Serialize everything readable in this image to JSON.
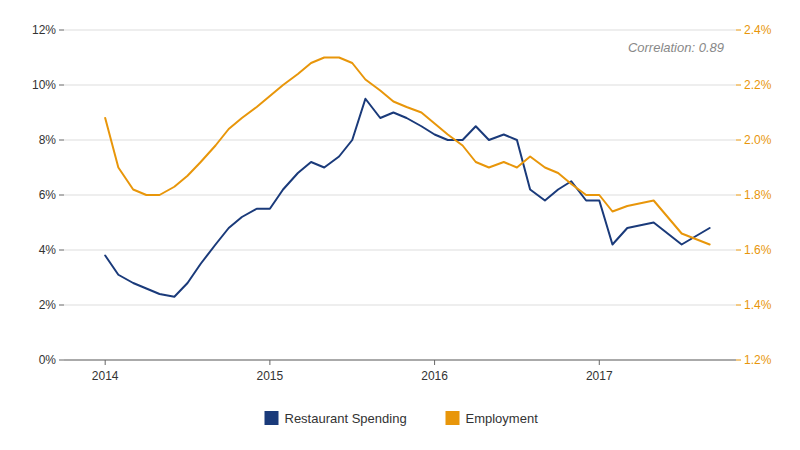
{
  "chart_data": {
    "type": "line",
    "annotation": "Correlation: 0.89",
    "x": [
      2014.0,
      2014.08,
      2014.17,
      2014.25,
      2014.33,
      2014.42,
      2014.5,
      2014.58,
      2014.67,
      2014.75,
      2014.83,
      2014.92,
      2015.0,
      2015.08,
      2015.17,
      2015.25,
      2015.33,
      2015.42,
      2015.5,
      2015.58,
      2015.67,
      2015.75,
      2015.83,
      2015.92,
      2016.0,
      2016.08,
      2016.17,
      2016.25,
      2016.33,
      2016.42,
      2016.5,
      2016.58,
      2016.67,
      2016.75,
      2016.83,
      2016.92,
      2017.0,
      2017.08,
      2017.17,
      2017.33,
      2017.5,
      2017.67
    ],
    "series": [
      {
        "name": "Restaurant Spending",
        "color": "#1a3a7a",
        "axis": "y",
        "values": [
          3.8,
          3.1,
          2.8,
          2.6,
          2.4,
          2.3,
          2.8,
          3.5,
          4.2,
          4.8,
          5.2,
          5.5,
          5.5,
          6.2,
          6.8,
          7.2,
          7.0,
          7.4,
          8.0,
          9.5,
          8.8,
          9.0,
          8.8,
          8.5,
          8.2,
          8.0,
          8.0,
          8.5,
          8.0,
          8.2,
          8.0,
          6.2,
          5.8,
          6.2,
          6.5,
          5.8,
          5.8,
          4.2,
          4.8,
          5.0,
          4.2,
          4.8
        ]
      },
      {
        "name": "Employment",
        "color": "#e8960a",
        "axis": "y2",
        "values": [
          2.08,
          1.9,
          1.82,
          1.8,
          1.8,
          1.83,
          1.87,
          1.92,
          1.98,
          2.04,
          2.08,
          2.12,
          2.16,
          2.2,
          2.24,
          2.28,
          2.3,
          2.3,
          2.28,
          2.22,
          2.18,
          2.14,
          2.12,
          2.1,
          2.06,
          2.02,
          1.98,
          1.92,
          1.9,
          1.92,
          1.9,
          1.94,
          1.9,
          1.88,
          1.84,
          1.8,
          1.8,
          1.74,
          1.76,
          1.78,
          1.66,
          1.62
        ]
      }
    ],
    "xlim": [
      2013.75,
      2017.83
    ],
    "xticks": [
      2014,
      2015,
      2016,
      2017
    ],
    "ylim": [
      0,
      12
    ],
    "yticks": [
      {
        "value": 0,
        "label": "0%"
      },
      {
        "value": 2,
        "label": "2%"
      },
      {
        "value": 4,
        "label": "4%"
      },
      {
        "value": 6,
        "label": "6%"
      },
      {
        "value": 8,
        "label": "8%"
      },
      {
        "value": 10,
        "label": "10%"
      },
      {
        "value": 12,
        "label": "12%"
      }
    ],
    "y2lim": [
      1.2,
      2.4
    ],
    "y2ticks": [
      {
        "value": 1.2,
        "label": "1.2%"
      },
      {
        "value": 1.4,
        "label": "1.4%"
      },
      {
        "value": 1.6,
        "label": "1.6%"
      },
      {
        "value": 1.8,
        "label": "1.8%"
      },
      {
        "value": 2.0,
        "label": "2.0%"
      },
      {
        "value": 2.2,
        "label": "2.2%"
      },
      {
        "value": 2.4,
        "label": "2.4%"
      }
    ],
    "grid": true,
    "legend": "bottom"
  }
}
